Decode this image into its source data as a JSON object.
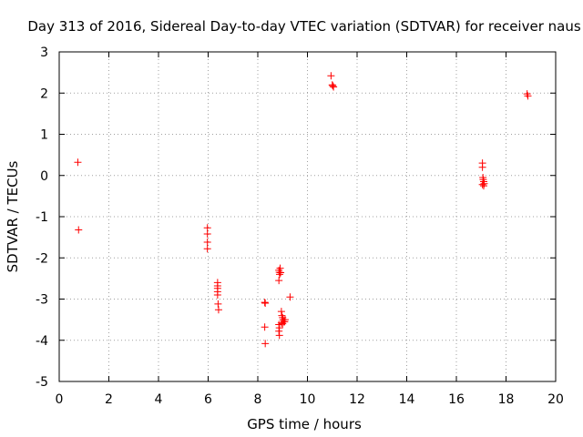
{
  "chart_data": {
    "type": "scatter",
    "title": "Day 313 of 2016, Sidereal Day-to-day VTEC variation (SDTVAR) for receiver naus",
    "xlabel": "GPS time / hours",
    "ylabel": "SDTVAR / TECUs",
    "xlim": [
      0,
      20
    ],
    "ylim": [
      -5,
      3
    ],
    "xticks": [
      0,
      2,
      4,
      6,
      8,
      10,
      12,
      14,
      16,
      18,
      20
    ],
    "yticks": [
      -5,
      -4,
      -3,
      -2,
      -1,
      0,
      1,
      2,
      3
    ],
    "grid": true,
    "marker": "+",
    "marker_color": "#ff0000",
    "series": [
      {
        "name": "SDTVAR",
        "points": [
          [
            0.75,
            0.32
          ],
          [
            0.78,
            -1.32
          ],
          [
            5.97,
            -1.27
          ],
          [
            5.97,
            -1.42
          ],
          [
            5.97,
            -1.62
          ],
          [
            5.97,
            -1.78
          ],
          [
            6.38,
            -2.6
          ],
          [
            6.38,
            -2.68
          ],
          [
            6.38,
            -2.74
          ],
          [
            6.38,
            -2.82
          ],
          [
            6.38,
            -2.9
          ],
          [
            6.4,
            -3.12
          ],
          [
            6.42,
            -3.26
          ],
          [
            8.28,
            -3.08
          ],
          [
            8.3,
            -3.1
          ],
          [
            8.28,
            -3.68
          ],
          [
            8.3,
            -4.08
          ],
          [
            8.85,
            -2.3
          ],
          [
            8.87,
            -2.35
          ],
          [
            8.88,
            -2.4
          ],
          [
            8.9,
            -2.25
          ],
          [
            8.92,
            -2.36
          ],
          [
            8.85,
            -2.55
          ],
          [
            8.85,
            -3.62
          ],
          [
            8.87,
            -3.7
          ],
          [
            8.85,
            -3.78
          ],
          [
            8.87,
            -3.88
          ],
          [
            8.95,
            -3.3
          ],
          [
            8.97,
            -3.4
          ],
          [
            9.0,
            -3.45
          ],
          [
            9.02,
            -3.5
          ],
          [
            9.05,
            -3.55
          ],
          [
            9.0,
            -3.6
          ],
          [
            9.08,
            -3.55
          ],
          [
            9.1,
            -3.5
          ],
          [
            8.95,
            -3.58
          ],
          [
            9.3,
            -2.95
          ],
          [
            10.95,
            2.42
          ],
          [
            11.0,
            2.2
          ],
          [
            11.02,
            2.18
          ],
          [
            11.05,
            2.15
          ],
          [
            17.05,
            0.3
          ],
          [
            17.05,
            0.2
          ],
          [
            17.07,
            -0.05
          ],
          [
            17.08,
            -0.1
          ],
          [
            17.1,
            -0.15
          ],
          [
            17.12,
            -0.2
          ],
          [
            17.1,
            -0.25
          ],
          [
            17.05,
            -0.22
          ],
          [
            18.85,
            1.98
          ],
          [
            18.88,
            1.93
          ]
        ]
      }
    ]
  }
}
